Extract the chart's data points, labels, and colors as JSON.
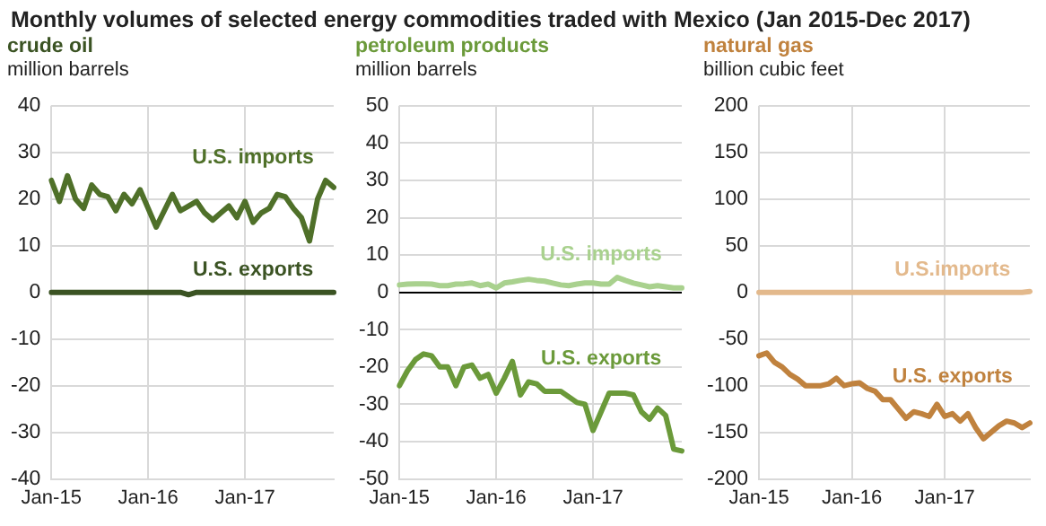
{
  "chart_data": [
    {
      "type": "line",
      "title": "Monthly volumes of selected energy commodities traded with Mexico (Jan 2015-Dec 2017)",
      "subtitle": "crude oil",
      "ylabel": "million barrels",
      "categories": [
        "Jan-15",
        null,
        null,
        null,
        null,
        null,
        null,
        null,
        null,
        null,
        null,
        null,
        "Jan-16",
        null,
        null,
        null,
        null,
        null,
        null,
        null,
        null,
        null,
        null,
        null,
        "Jan-17",
        null,
        null,
        null,
        null,
        null,
        null,
        null,
        null,
        null,
        null,
        null
      ],
      "series": [
        {
          "name": "U.S. imports",
          "color": "#4f7029",
          "values": [
            24,
            19.5,
            25,
            20,
            18,
            23,
            21,
            20.5,
            17.5,
            21,
            19,
            22,
            18,
            14,
            17.5,
            21,
            17.5,
            18.5,
            19.5,
            17,
            15.5,
            17,
            18.5,
            16,
            19.5,
            15,
            17,
            18,
            21,
            20.5,
            18,
            16,
            11,
            20,
            24,
            22.5
          ]
        },
        {
          "name": "U.S. exports",
          "color": "#3b5323",
          "values": [
            0,
            0,
            0,
            0,
            0,
            0,
            0,
            0,
            0,
            0,
            0,
            0,
            0,
            0,
            0,
            0,
            0,
            -0.5,
            0,
            0,
            0,
            0,
            0,
            0,
            0,
            0,
            0,
            0,
            0,
            0,
            0,
            0,
            0,
            0,
            0,
            0
          ]
        }
      ],
      "ylim": [
        -40,
        40
      ],
      "yticks": [
        -40,
        -30,
        -20,
        -10,
        0,
        10,
        20,
        30,
        40
      ],
      "grid": true,
      "legend": false,
      "marker": "none"
    },
    {
      "type": "line",
      "subtitle": "petroleum products",
      "ylabel": "million barrels",
      "categories": [
        "Jan-15",
        null,
        null,
        null,
        null,
        null,
        null,
        null,
        null,
        null,
        null,
        null,
        "Jan-16",
        null,
        null,
        null,
        null,
        null,
        null,
        null,
        null,
        null,
        null,
        null,
        "Jan-17",
        null,
        null,
        null,
        null,
        null,
        null,
        null,
        null,
        null,
        null,
        null
      ],
      "series": [
        {
          "name": "U.S. imports",
          "color": "#a9d18e",
          "values": [
            2,
            2.2,
            2.3,
            2.3,
            2.2,
            1.8,
            1.8,
            2.2,
            2.3,
            2.5,
            1.8,
            2.2,
            1.2,
            2.5,
            2.8,
            3.2,
            3.5,
            3.2,
            3,
            2.5,
            2,
            1.8,
            2.2,
            2.5,
            2.5,
            2.2,
            2.2,
            4,
            3.2,
            2.5,
            2,
            1.5,
            1.8,
            1.5,
            1.2,
            1.2
          ]
        },
        {
          "name": "U.S. exports",
          "color": "#6b9a3a",
          "values": [
            -25,
            -21,
            -18,
            -16.5,
            -17,
            -20,
            -20,
            -25,
            -20,
            -19.5,
            -23,
            -22,
            -27,
            -23,
            -18.5,
            -27.5,
            -24,
            -24.5,
            -26.5,
            -26.5,
            -26.5,
            -28,
            -29.5,
            -30,
            -37,
            -32,
            -27,
            -27,
            -27,
            -27.5,
            -32,
            -34,
            -31,
            -33,
            -42,
            -42.5
          ]
        }
      ],
      "ylim": [
        -50,
        50
      ],
      "yticks": [
        -50,
        -40,
        -30,
        -20,
        -10,
        0,
        10,
        20,
        30,
        40,
        50
      ],
      "grid": true,
      "legend": false,
      "marker": "none"
    },
    {
      "type": "line",
      "subtitle": "natural gas",
      "ylabel": "billion cubic feet",
      "categories": [
        "Jan-15",
        null,
        null,
        null,
        null,
        null,
        null,
        null,
        null,
        null,
        null,
        null,
        "Jan-16",
        null,
        null,
        null,
        null,
        null,
        null,
        null,
        null,
        null,
        null,
        null,
        "Jan-17",
        null,
        null,
        null,
        null,
        null,
        null,
        null,
        null,
        null,
        null,
        null
      ],
      "series": [
        {
          "name": "U.S.imports",
          "color": "#e3b98c",
          "values": [
            0,
            0,
            0,
            0,
            0,
            0,
            0,
            0,
            0,
            0,
            0,
            0,
            0,
            0,
            0,
            0,
            0,
            0,
            0,
            0,
            0,
            0,
            0,
            0,
            0,
            0,
            0,
            0,
            0,
            0,
            0,
            0,
            0,
            0,
            0,
            1
          ]
        },
        {
          "name": "U.S. exports",
          "color": "#c0823e",
          "values": [
            -68,
            -65,
            -75,
            -80,
            -88,
            -93,
            -100,
            -100,
            -100,
            -98,
            -92,
            -100,
            -98,
            -97,
            -103,
            -106,
            -115,
            -115,
            -125,
            -135,
            -128,
            -130,
            -133,
            -120,
            -133,
            -130,
            -138,
            -130,
            -145,
            -157,
            -150,
            -143,
            -138,
            -140,
            -145,
            -140
          ]
        }
      ],
      "ylim": [
        -200,
        200
      ],
      "yticks": [
        -200,
        -150,
        -100,
        -50,
        0,
        50,
        100,
        150,
        200
      ],
      "grid": true,
      "legend": false,
      "marker": "none"
    }
  ]
}
